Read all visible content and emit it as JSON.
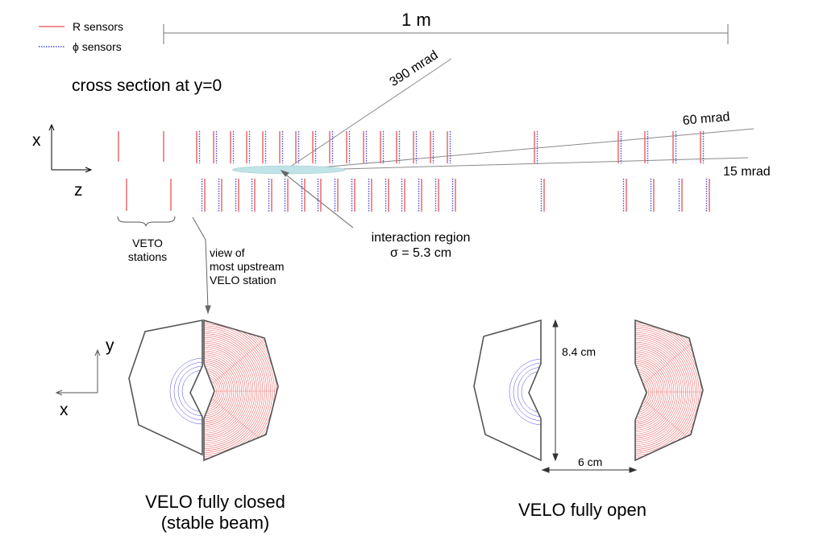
{
  "legend": {
    "r_label": "R sensors",
    "phi_label": "ϕ sensors",
    "r_color": "#e8696b",
    "phi_color": "#4a4ae0"
  },
  "scale_label": "1 m",
  "section_title": "cross section at y=0",
  "axes_top": {
    "x": "x",
    "z": "z"
  },
  "axes_bottom": {
    "y": "y",
    "x": "x"
  },
  "angles": {
    "a390": "390 mrad",
    "a60": "60 mrad",
    "a15": "15 mrad"
  },
  "veto_label": [
    "VETO",
    "stations"
  ],
  "view_label": [
    "view of",
    "most upstream",
    "VELO station"
  ],
  "interaction_label": [
    "interaction region",
    "σ = 5.3 cm"
  ],
  "dims": {
    "height": "8.4 cm",
    "gap": "6 cm"
  },
  "captions": {
    "closed": [
      "VELO fully closed",
      "(stable beam)"
    ],
    "open": "VELO fully open"
  },
  "colors": {
    "r_fill": "#f3b8b8",
    "phi_fill": "#b9b9f0",
    "outline": "#555555",
    "interaction_fill": "#bfe3e6"
  }
}
